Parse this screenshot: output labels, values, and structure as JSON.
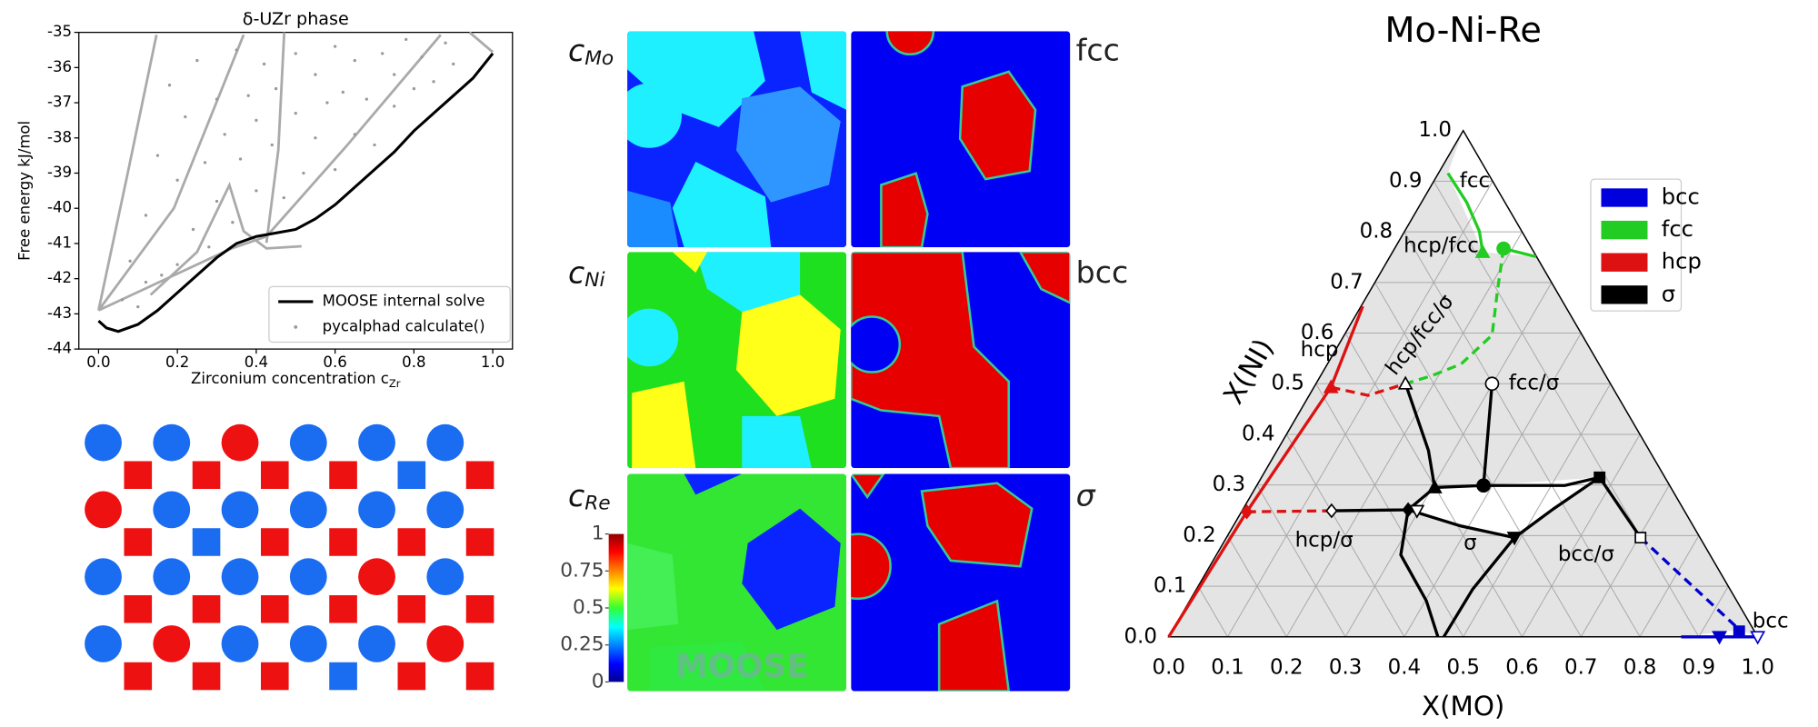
{
  "chart_data": [
    {
      "type": "line",
      "title": "δ-UZr phase",
      "ylabel": "Free energy kJ/mol",
      "xlabel": "Zirconium concentration c",
      "xlabel_sub": "Zr",
      "xlim": [
        -0.05,
        1.05
      ],
      "ylim": [
        -44,
        -35
      ],
      "xticks": [
        {
          "value": 0,
          "label": "0.0"
        },
        0.2,
        0.4,
        0.6,
        0.8,
        {
          "value": 1,
          "label": "1.0"
        }
      ],
      "yticks": [
        -44,
        -43,
        -42,
        -41,
        -40,
        -39,
        -38,
        -37,
        -36,
        -35
      ],
      "legend": "lower right",
      "series": [
        {
          "color": "#aaaaaa",
          "x": [
            0,
            0.074,
            0.147
          ],
          "values": [
            -42.9,
            -39.0,
            -35.07
          ]
        },
        {
          "color": "#aaaaaa",
          "x": [
            0,
            0.191,
            0.368
          ],
          "values": [
            -42.9,
            -40.0,
            -35.07
          ]
        },
        {
          "color": "#aaaaaa",
          "x": [
            0,
            0.338,
            0.426,
            0.632,
            0.868
          ],
          "values": [
            -42.9,
            -41.14,
            -40.8,
            -38.19,
            -35.07
          ]
        },
        {
          "color": "#aaaaaa",
          "x": [
            0.132,
            0.25,
            0.332,
            0.368,
            0.426,
            0.515
          ],
          "values": [
            -42.46,
            -41.24,
            -39.34,
            -40.65,
            -41.14,
            -41.08
          ]
        },
        {
          "color": "#aaaaaa",
          "x": [
            0.426,
            0.456,
            0.471
          ],
          "values": [
            -40.98,
            -38.35,
            -35.0
          ]
        },
        {
          "color": "#aaaaaa",
          "x": [
            0.941,
            1.0
          ],
          "values": [
            -35.0,
            -35.56
          ]
        },
        {
          "name": "MOOSE internal solve",
          "color": "#000000",
          "x": [
            0,
            0.02,
            0.05,
            0.1,
            0.15,
            0.2,
            0.25,
            0.3,
            0.35,
            0.4,
            0.45,
            0.5,
            0.55,
            0.6,
            0.65,
            0.7,
            0.75,
            0.8,
            0.85,
            0.9,
            0.95,
            1.0
          ],
          "values": [
            -43.2,
            -43.4,
            -43.5,
            -43.3,
            -42.9,
            -42.4,
            -41.9,
            -41.4,
            -41.0,
            -40.8,
            -40.7,
            -40.6,
            -40.3,
            -39.9,
            -39.4,
            -38.9,
            -38.4,
            -37.8,
            -37.3,
            -36.8,
            -36.3,
            -35.6
          ]
        },
        {
          "name": "pycalphad calculate()",
          "color": "#999999",
          "type": "scatter",
          "x": [
            0.06,
            0.08,
            0.1,
            0.12,
            0.12,
            0.15,
            0.16,
            0.18,
            0.2,
            0.2,
            0.22,
            0.24,
            0.25,
            0.27,
            0.28,
            0.3,
            0.3,
            0.32,
            0.34,
            0.35,
            0.36,
            0.38,
            0.4,
            0.4,
            0.42,
            0.44,
            0.45,
            0.47,
            0.5,
            0.5,
            0.52,
            0.55,
            0.55,
            0.58,
            0.6,
            0.6,
            0.62,
            0.65,
            0.65,
            0.68,
            0.7,
            0.72,
            0.75,
            0.75,
            0.78,
            0.8,
            0.82,
            0.85,
            0.88,
            0.9
          ],
          "values": [
            -42.6,
            -41.5,
            -42.8,
            -40.2,
            -42.1,
            -38.5,
            -41.9,
            -36.5,
            -39.2,
            -41.6,
            -37.4,
            -40.6,
            -35.8,
            -38.7,
            -41.1,
            -36.9,
            -39.8,
            -37.9,
            -40.4,
            -35.5,
            -38.6,
            -36.8,
            -39.5,
            -37.5,
            -35.9,
            -38.2,
            -36.6,
            -39.7,
            -37.3,
            -35.6,
            -39.0,
            -36.2,
            -38.0,
            -37.0,
            -35.4,
            -38.9,
            -36.7,
            -37.9,
            -35.8,
            -36.9,
            -38.2,
            -35.6,
            -37.1,
            -36.2,
            -35.2,
            -36.6,
            -35.7,
            -36.4,
            -35.3,
            -35.9
          ]
        }
      ]
    },
    {
      "type": "ternary",
      "title": "Mo-Ni-Re",
      "xlabel": "X(MO)",
      "ylabel": "X(NI)",
      "xlim": [
        0,
        1
      ],
      "ylim": [
        0,
        1
      ],
      "xticks": [
        {
          "value": 0,
          "label": "0.0"
        },
        0.1,
        0.2,
        0.3,
        0.4,
        0.5,
        0.6,
        0.7,
        0.8,
        0.9,
        {
          "value": 1,
          "label": "1.0"
        }
      ],
      "yticks": [
        {
          "value": 0,
          "label": "0.0"
        },
        0.1,
        0.2,
        0.3,
        0.4,
        0.5,
        0.6,
        0.7,
        0.8,
        0.9,
        {
          "value": 1,
          "label": "1.0"
        }
      ],
      "grid": true,
      "legend_position": "upper right",
      "legend": [
        {
          "name": "bcc",
          "color": "#0000dd"
        },
        {
          "name": "fcc",
          "color": "#22cc22"
        },
        {
          "name": "hcp",
          "color": "#dd1111"
        },
        {
          "name": "σ",
          "color": "#000000"
        }
      ],
      "labels": [
        "fcc",
        "hcp/fcc",
        "hcp",
        "hcp/fcc/σ",
        "fcc/σ",
        "hcp/σ",
        "σ",
        "bcc/σ",
        "bcc"
      ],
      "series": [
        {
          "color": "#22cc22",
          "x": [
            0.016,
            0.077,
            0.127,
            0.153
          ],
          "values": [
            0.916,
            0.858,
            0.801,
            0.76
          ]
        },
        {
          "color": "#22cc22",
          "x": [
            0.185,
            0.248
          ],
          "values": [
            0.767,
            0.751
          ]
        },
        {
          "color": "#22cc22",
          "dashed": true,
          "x": [
            0.185,
            0.215,
            0.251,
            0.227,
            0.189,
            0.152
          ],
          "values": [
            0.767,
            0.687,
            0.596,
            0.539,
            0.516,
            0.5
          ]
        },
        {
          "color": "#dd1111",
          "x": [
            0,
            0.009,
            0.029,
            0.003
          ],
          "values": [
            0,
            0.247,
            0.493,
            0.653
          ]
        },
        {
          "color": "#dd1111",
          "dashed": true,
          "x": [
            0.009,
            0.152
          ],
          "values": [
            0.247,
            0.249
          ]
        },
        {
          "color": "#dd1111",
          "dashed": true,
          "x": [
            0.029,
            0.1,
            0.152
          ],
          "values": [
            0.493,
            0.477,
            0.5
          ]
        },
        {
          "color": "#0000cc",
          "dashed": true,
          "x": [
            0.703,
            0.962
          ],
          "values": [
            0.196,
            0.014
          ]
        },
        {
          "color": "#0000cc",
          "x": [
            0.87,
            1
          ],
          "values": [
            0,
            0
          ]
        },
        {
          "color": "#000000",
          "x": [
            0.152,
            0.257,
            0.304
          ],
          "values": [
            0.5,
            0.368,
            0.295
          ]
        },
        {
          "color": "#000000",
          "x": [
            0.304,
            0.385,
            0.523,
            0.574
          ],
          "values": [
            0.295,
            0.299,
            0.299,
            0.315
          ]
        },
        {
          "color": "#000000",
          "x": [
            0.299,
            0.385
          ],
          "values": [
            0.5,
            0.299
          ]
        },
        {
          "color": "#000000",
          "x": [
            0.152,
            0.281,
            0.304
          ],
          "values": [
            0.249,
            0.251,
            0.295
          ]
        },
        {
          "color": "#000000",
          "x": [
            0.281,
            0.313,
            0.402,
            0.457
          ],
          "values": [
            0.251,
            0.162,
            0.071,
            0
          ]
        },
        {
          "color": "#000000",
          "x": [
            0.281,
            0.386,
            0.489
          ],
          "values": [
            0.251,
            0.219,
            0.196
          ]
        },
        {
          "color": "#000000",
          "x": [
            0.489,
            0.469,
            0.467
          ],
          "values": [
            0.196,
            0.094,
            0
          ]
        },
        {
          "color": "#000000",
          "x": [
            0.489,
            0.527,
            0.574
          ],
          "values": [
            0.196,
            0.253,
            0.315
          ]
        },
        {
          "color": "#000000",
          "x": [
            0.574,
            0.703
          ],
          "values": [
            0.315,
            0.196
          ]
        }
      ],
      "points": [
        {
          "marker": "^",
          "color": "#22cc22",
          "filled": true,
          "x": 0.153,
          "y": 0.76
        },
        {
          "marker": "o",
          "color": "#22cc22",
          "filled": true,
          "x": 0.185,
          "y": 0.767
        },
        {
          "marker": "^",
          "color": "#dd1111",
          "filled": true,
          "x": 0.029,
          "y": 0.493
        },
        {
          "marker": "D",
          "color": "#dd1111",
          "filled": true,
          "x": 0.009,
          "y": 0.247
        },
        {
          "marker": "^",
          "color": "#000000",
          "filled": false,
          "x": 0.152,
          "y": 0.5
        },
        {
          "marker": "o",
          "color": "#000000",
          "filled": false,
          "x": 0.299,
          "y": 0.5
        },
        {
          "marker": "o",
          "color": "#000000",
          "filled": true,
          "x": 0.385,
          "y": 0.299
        },
        {
          "marker": "^",
          "color": "#000000",
          "filled": true,
          "x": 0.304,
          "y": 0.295
        },
        {
          "marker": "D",
          "color": "#000000",
          "filled": false,
          "x": 0.152,
          "y": 0.249
        },
        {
          "marker": "D",
          "color": "#000000",
          "filled": true,
          "x": 0.281,
          "y": 0.251
        },
        {
          "marker": "v",
          "color": "#000000",
          "filled": false,
          "x": 0.297,
          "y": 0.249
        },
        {
          "marker": "v",
          "color": "#000000",
          "filled": true,
          "x": 0.489,
          "y": 0.196
        },
        {
          "marker": "s",
          "color": "#000000",
          "filled": true,
          "x": 0.574,
          "y": 0.315
        },
        {
          "marker": "s",
          "color": "#000000",
          "filled": false,
          "x": 0.703,
          "y": 0.196
        },
        {
          "marker": "v",
          "color": "#0000cc",
          "filled": true,
          "x": 0.935,
          "y": 0
        },
        {
          "marker": "s",
          "color": "#0000cc",
          "filled": true,
          "x": 0.963,
          "y": 0.011
        },
        {
          "marker": "v",
          "color": "#0000cc",
          "filled": false,
          "x": 1,
          "y": 0
        }
      ]
    }
  ],
  "phase_field": {
    "rows": [
      {
        "var": "c",
        "sub": "Mo",
        "phase": "fcc"
      },
      {
        "var": "c",
        "sub": "Ni",
        "phase": "bcc"
      },
      {
        "var": "c",
        "sub": "Re",
        "phase": "σ"
      }
    ],
    "colorbar": {
      "lim": [
        0,
        1
      ],
      "ticks": [
        0,
        0.25,
        0.5,
        0.75,
        1
      ]
    },
    "watermark": "MOOSE"
  }
}
